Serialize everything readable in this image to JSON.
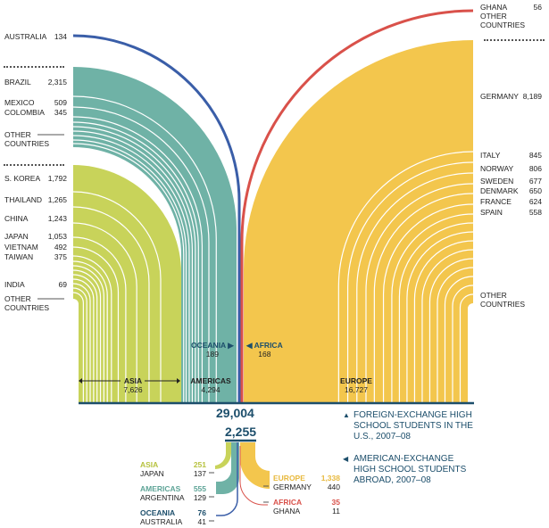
{
  "colors": {
    "asia": "#c8d35a",
    "americas": "#6fb2a6",
    "oceania": "#3a5ea8",
    "africa": "#d9514a",
    "europe": "#f3c64d",
    "dark": "#1c4e6b"
  },
  "left": {
    "australia": {
      "name": "AUSTRALIA",
      "value": "134"
    },
    "americas_countries": [
      {
        "name": "BRAZIL",
        "value": "2,315"
      },
      {
        "name": "MEXICO",
        "value": "509"
      },
      {
        "name": "COLOMBIA",
        "value": "345"
      }
    ],
    "americas_other": "OTHER COUNTRIES",
    "asia_countries": [
      {
        "name": "S. KOREA",
        "value": "1,792"
      },
      {
        "name": "THAILAND",
        "value": "1,265"
      },
      {
        "name": "CHINA",
        "value": "1,243"
      },
      {
        "name": "JAPAN",
        "value": "1,053"
      },
      {
        "name": "VIETNAM",
        "value": "492"
      },
      {
        "name": "TAIWAN",
        "value": "375"
      },
      {
        "name": "INDIA",
        "value": "69"
      }
    ],
    "asia_other": "OTHER COUNTRIES"
  },
  "right": {
    "ghana": {
      "name": "GHANA",
      "value": "56"
    },
    "africa_other": "OTHER COUNTRIES",
    "europe_countries": [
      {
        "name": "GERMANY",
        "value": "8,189"
      },
      {
        "name": "ITALY",
        "value": "845"
      },
      {
        "name": "NORWAY",
        "value": "806"
      },
      {
        "name": "SWEDEN",
        "value": "677"
      },
      {
        "name": "DENMARK",
        "value": "650"
      },
      {
        "name": "FRANCE",
        "value": "624"
      },
      {
        "name": "SPAIN",
        "value": "558"
      }
    ],
    "europe_other": "OTHER COUNTRIES"
  },
  "regions": {
    "oceania": {
      "name": "OCEANIA",
      "value": "189"
    },
    "africa": {
      "name": "AFRICA",
      "value": "168"
    },
    "asia": {
      "name": "ASIA",
      "value": "7,626"
    },
    "americas": {
      "name": "AMERICAS",
      "value": "4,294"
    },
    "europe": {
      "name": "EUROPE",
      "value": "16,727"
    }
  },
  "totals": {
    "foreign": "29,004",
    "american": "2,255"
  },
  "legend": {
    "foreign": "FOREIGN-EXCHANGE HIGH SCHOOL STUDENTS IN THE U.S., 2007–08",
    "american": "AMERICAN-EXCHANGE HIGH SCHOOL STUDENTS ABROAD, 2007–08"
  },
  "abroad": {
    "asia": {
      "name": "ASIA",
      "value": "251",
      "country": "JAPAN",
      "country_value": "137"
    },
    "americas": {
      "name": "AMERICAS",
      "value": "555",
      "country": "ARGENTINA",
      "country_value": "129"
    },
    "oceania": {
      "name": "OCEANIA",
      "value": "76",
      "country": "AUSTRALIA",
      "country_value": "41"
    },
    "europe": {
      "name": "EUROPE",
      "value": "1,338",
      "country": "GERMANY",
      "country_value": "440"
    },
    "africa": {
      "name": "AFRICA",
      "value": "35",
      "country": "GHANA",
      "country_value": "11"
    }
  }
}
